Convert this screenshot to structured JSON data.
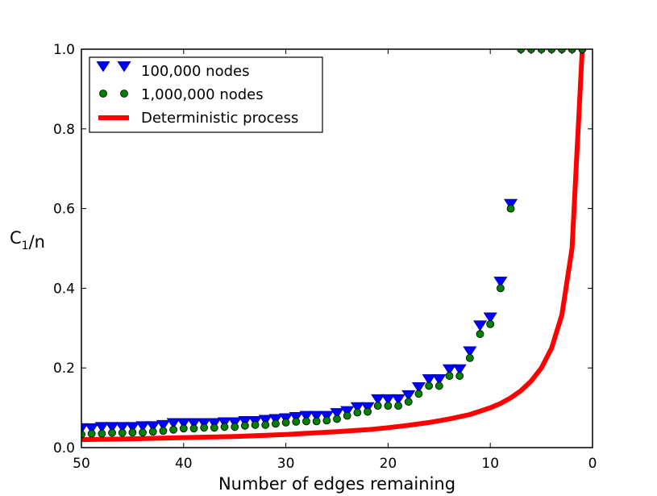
{
  "chart_data": {
    "type": "scatter",
    "title": "",
    "xlabel": "Number of edges remaining",
    "ylabel": "C",
    "ylabel_subscript": "1",
    "ylabel_suffix": "/n",
    "xlim": [
      50,
      0
    ],
    "ylim": [
      0,
      1.0
    ],
    "xticks": [
      50,
      40,
      30,
      20,
      10,
      0
    ],
    "xtick_labels": [
      "50",
      "40",
      "30",
      "20",
      "10",
      "0"
    ],
    "yticks": [
      0.0,
      0.2,
      0.4,
      0.6,
      0.8,
      1.0
    ],
    "ytick_labels": [
      "0.0",
      "0.2",
      "0.4",
      "0.6",
      "0.8",
      "1.0"
    ],
    "legend_position": "top-left",
    "series": [
      {
        "name": "100,000 nodes",
        "marker": "triangle-down",
        "color": "#0000ff",
        "x": [
          50,
          49,
          48,
          47,
          46,
          45,
          44,
          43,
          42,
          41,
          40,
          39,
          38,
          37,
          36,
          35,
          34,
          33,
          32,
          31,
          30,
          29,
          28,
          27,
          26,
          25,
          24,
          23,
          22,
          21,
          20,
          19,
          18,
          17,
          16,
          15,
          14,
          13,
          12,
          11,
          10,
          9,
          8,
          7,
          6,
          5,
          4,
          3,
          2,
          1
        ],
        "y": [
          0.047,
          0.047,
          0.05,
          0.05,
          0.05,
          0.05,
          0.052,
          0.052,
          0.055,
          0.06,
          0.06,
          0.06,
          0.06,
          0.06,
          0.062,
          0.062,
          0.065,
          0.065,
          0.068,
          0.07,
          0.072,
          0.075,
          0.078,
          0.078,
          0.078,
          0.085,
          0.09,
          0.1,
          0.1,
          0.12,
          0.12,
          0.12,
          0.13,
          0.15,
          0.17,
          0.17,
          0.195,
          0.195,
          0.24,
          0.305,
          0.325,
          0.415,
          0.61,
          1.0,
          1.0,
          1.0,
          1.0,
          1.0,
          1.0,
          1.0
        ]
      },
      {
        "name": "1,000,000 nodes",
        "marker": "circle",
        "color": "#008000",
        "x": [
          50,
          49,
          48,
          47,
          46,
          45,
          44,
          43,
          42,
          41,
          40,
          39,
          38,
          37,
          36,
          35,
          34,
          33,
          32,
          31,
          30,
          29,
          28,
          27,
          26,
          25,
          24,
          23,
          22,
          21,
          20,
          19,
          18,
          17,
          16,
          15,
          14,
          13,
          12,
          11,
          10,
          9,
          8,
          7,
          6,
          5,
          4,
          3,
          2,
          1
        ],
        "y": [
          0.033,
          0.035,
          0.035,
          0.037,
          0.037,
          0.038,
          0.038,
          0.04,
          0.042,
          0.045,
          0.048,
          0.048,
          0.05,
          0.05,
          0.052,
          0.052,
          0.055,
          0.057,
          0.057,
          0.06,
          0.063,
          0.065,
          0.066,
          0.066,
          0.068,
          0.072,
          0.08,
          0.088,
          0.09,
          0.105,
          0.105,
          0.105,
          0.115,
          0.135,
          0.155,
          0.155,
          0.18,
          0.18,
          0.225,
          0.285,
          0.31,
          0.4,
          0.6,
          1.0,
          1.0,
          1.0,
          1.0,
          1.0,
          1.0,
          1.0
        ]
      },
      {
        "name": "Deterministic process",
        "marker": "line",
        "color": "#ff0000",
        "x": [
          50,
          45,
          40,
          35,
          30,
          25,
          22,
          20,
          18,
          16,
          14,
          12,
          10,
          9,
          8,
          7,
          6,
          5,
          4,
          3,
          2,
          1
        ],
        "y": [
          0.02,
          0.022,
          0.025,
          0.028,
          0.033,
          0.04,
          0.045,
          0.05,
          0.056,
          0.063,
          0.072,
          0.083,
          0.1,
          0.111,
          0.125,
          0.143,
          0.167,
          0.2,
          0.25,
          0.333,
          0.5,
          1.0
        ]
      }
    ]
  }
}
